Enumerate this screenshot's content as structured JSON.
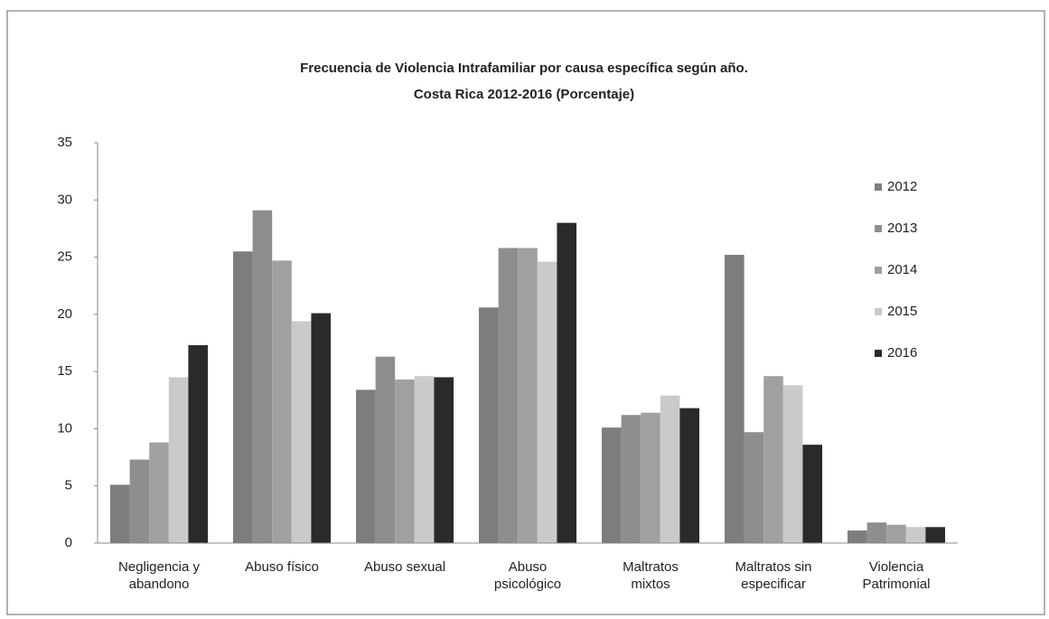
{
  "chart_data": {
    "type": "bar",
    "title": "Frecuencia de Violencia Intrafamiliar por causa específica según año.",
    "subtitle": "Costa Rica 2012-2016 (Porcentaje)",
    "categories": [
      "Negligencia y abandono",
      "Abuso físico",
      "Abuso sexual",
      "Abuso psicológico",
      "Maltratos mixtos",
      "Maltratos sin especificar",
      "Violencia Patrimonial"
    ],
    "series": [
      {
        "name": "2012",
        "color": "#7d7d7d",
        "values": [
          5.1,
          25.5,
          13.4,
          20.6,
          10.1,
          25.2,
          1.1
        ]
      },
      {
        "name": "2013",
        "color": "#8e8e8e",
        "values": [
          7.3,
          29.1,
          16.3,
          25.8,
          11.2,
          9.7,
          1.8
        ]
      },
      {
        "name": "2014",
        "color": "#a0a0a0",
        "values": [
          8.8,
          24.7,
          14.3,
          25.8,
          11.4,
          14.6,
          1.6
        ]
      },
      {
        "name": "2015",
        "color": "#cacaca",
        "values": [
          14.5,
          19.4,
          14.6,
          24.6,
          12.9,
          13.8,
          1.4
        ]
      },
      {
        "name": "2016",
        "color": "#2a2a2a",
        "values": [
          17.3,
          20.1,
          14.5,
          28.0,
          11.8,
          8.6,
          1.4
        ]
      }
    ],
    "ylim": [
      0,
      35
    ],
    "yticks": [
      0,
      5,
      10,
      15,
      20,
      25,
      30,
      35
    ],
    "legend": "right",
    "grid": false
  }
}
